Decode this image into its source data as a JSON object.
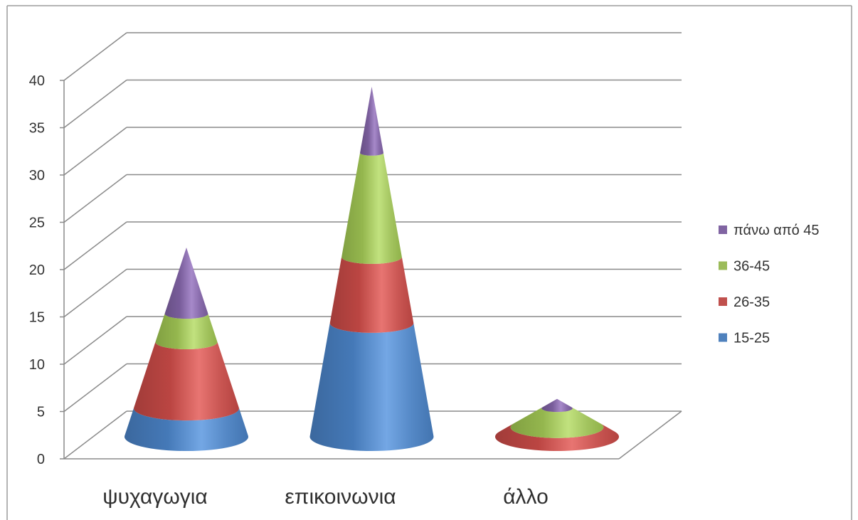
{
  "chart_data": {
    "type": "bar",
    "shape": "cone",
    "stacked": true,
    "three_d": true,
    "categories": [
      "ψυχαγωγια",
      "επικοινωνια",
      "άλλο"
    ],
    "series": [
      {
        "name": "15-25",
        "color": "#4F81BD",
        "values": [
          3,
          12,
          0
        ]
      },
      {
        "name": "26-35",
        "color": "#C0504D",
        "values": [
          7,
          7,
          1
        ]
      },
      {
        "name": "36-45",
        "color": "#9BBB59",
        "values": [
          3,
          11,
          2
        ]
      },
      {
        "name": "πάνω από 45",
        "color": "#8064A2",
        "values": [
          7,
          7,
          1
        ]
      }
    ],
    "ylim": [
      0,
      40
    ],
    "y_tick_labels": [
      "0",
      "5",
      "10",
      "15",
      "20",
      "25",
      "30",
      "35",
      "40"
    ],
    "grid": true,
    "legend": "right"
  }
}
